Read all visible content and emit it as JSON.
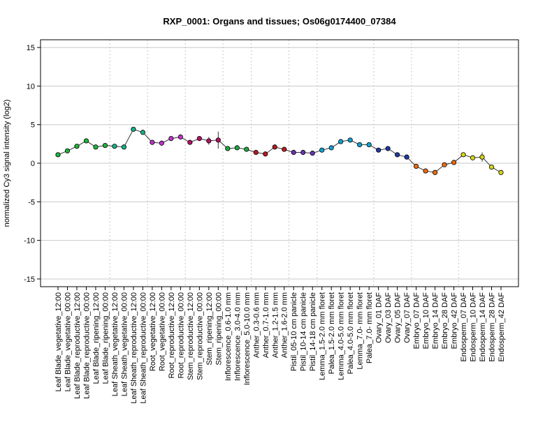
{
  "chart_data": {
    "type": "line",
    "title": "RXP_0001: Organs and tissues; Os06g0174400_07384",
    "xlabel": "",
    "ylabel": "normalized Cy3 signal intensity (log2)",
    "ylim": [
      -16,
      16
    ],
    "yticks": [
      -15,
      -10,
      -5,
      0,
      5,
      10,
      15
    ],
    "grid": true,
    "legend": "none",
    "line_color": "#333333",
    "categories": [
      "Leaf Blade_vegetative_12:00",
      "Leaf Blade_vegetative_00:00",
      "Leaf Blade_reproductive_12:00",
      "Leaf Blade_reproductive_00:00",
      "Leaf Blade_ripening_12:00",
      "Leaf Blade_ripening_00:00",
      "Leaf Sheath_vegetative_12:00",
      "Leaf Sheath_vegetative_00:00",
      "Leaf Sheath_reproductive_12:00",
      "Leaf Sheath_reproductive_00:00",
      "Root_vegetative_12:00",
      "Root_vegetative_00:00",
      "Root_reproductive_12:00",
      "Root_reproductive_00:00",
      "Stem_reproductive_12:00",
      "Stem_reproductive_00:00",
      "Stem_ripening_12:00",
      "Stem_ripening_00:00",
      "Inflorescence_0.6-1.0 mm",
      "Inflorescence_3.0-4.0 mm",
      "Inflorescence_5.0-10.0 mm",
      "Anther_0.3-0.6 mm",
      "Anther_0.7-1.0 mm",
      "Anther_1.2-1.5 mm",
      "Anther_1.6-2.0 mm",
      "Pistil_05-10 cm panicle",
      "Pistil_10-14 cm panicle",
      "Pistil_14-18 cm panicle",
      "Lemma_1.5-2.0 mm floret",
      "Palea_1.5-2.0 mm floret",
      "Lemma_4.0-5.0 mm floret",
      "Palea_4.0-5.0 mm floret",
      "Lemma_7.0- mm floret",
      "Palea_7.0- mm floret",
      "Ovary_01 DAF",
      "Ovary_03 DAF",
      "Ovary_05 DAF",
      "Ovary_07 DAF",
      "Embryo_07 DAF",
      "Embryo_10 DAF",
      "Embryo_14 DAF",
      "Embryo_28 DAF",
      "Embryo_42 DAF",
      "Endosperm_07 DAF",
      "Endosperm_10 DAF",
      "Endosperm_14 DAF",
      "Endosperm_28 DAF",
      "Endosperm_42 DAF"
    ],
    "values": [
      1.1,
      1.6,
      2.2,
      2.9,
      2.1,
      2.3,
      2.2,
      2.1,
      4.4,
      4.0,
      2.7,
      2.6,
      3.2,
      3.4,
      2.7,
      3.2,
      2.9,
      3.0,
      1.9,
      2.0,
      1.8,
      1.4,
      1.2,
      2.1,
      1.8,
      1.4,
      1.4,
      1.3,
      1.7,
      2.0,
      2.8,
      3.0,
      2.4,
      2.4,
      1.7,
      1.9,
      1.1,
      0.8,
      -0.4,
      -1.0,
      -1.2,
      -0.2,
      0.1,
      1.1,
      0.7,
      0.8,
      -0.5,
      -1.2
    ],
    "error_bars": [
      0.1,
      0.2,
      0.15,
      0.2,
      0.1,
      0.1,
      0.1,
      0.15,
      0.2,
      0.3,
      0.2,
      0.2,
      0.1,
      0.1,
      0.2,
      0.15,
      0.5,
      1.1,
      0.1,
      0.1,
      0.1,
      0.1,
      0.3,
      0.15,
      0.1,
      0.1,
      0.1,
      0.1,
      0.1,
      0.1,
      0.1,
      0.1,
      0.1,
      0.1,
      0.2,
      0.1,
      0.1,
      0.1,
      0.1,
      0.1,
      0.3,
      0.1,
      0.1,
      0.15,
      0.3,
      0.6,
      0.2,
      0.1
    ],
    "colors": [
      "#1eb43c",
      "#1eb43c",
      "#1eb43c",
      "#1eb43c",
      "#1eb43c",
      "#1eb43c",
      "#17b089",
      "#17b089",
      "#17b089",
      "#17b089",
      "#c030c8",
      "#c030c8",
      "#c030c8",
      "#c030c8",
      "#b31262",
      "#b31262",
      "#b31262",
      "#b31262",
      "#1aa840",
      "#1aa840",
      "#1aa840",
      "#b51b24",
      "#b51b24",
      "#b51b24",
      "#b51b24",
      "#6a33b2",
      "#6a33b2",
      "#6a33b2",
      "#0fa3ce",
      "#0fa3ce",
      "#0fa3ce",
      "#0fa3ce",
      "#0fa3ce",
      "#0fa3ce",
      "#1e3aa6",
      "#1e3aa6",
      "#1e3aa6",
      "#1e3aa6",
      "#ea6b10",
      "#ea6b10",
      "#ea6b10",
      "#ea6b10",
      "#ea6b10",
      "#d6d412",
      "#d6d412",
      "#d6d412",
      "#d6d412",
      "#d6d412"
    ],
    "group_separators_after_index": [
      5,
      9,
      13,
      17,
      20,
      24,
      27,
      33,
      37,
      42
    ]
  }
}
